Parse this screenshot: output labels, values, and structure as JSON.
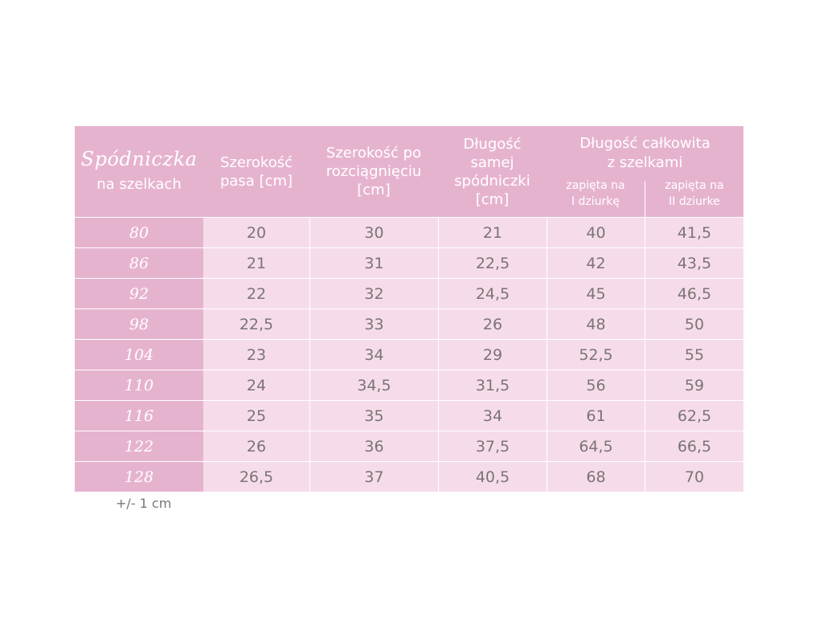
{
  "header": {
    "brand_title": "Spódniczka",
    "brand_sub": "na szelkach",
    "col_waist": [
      "Szerokość",
      "pasa [cm]"
    ],
    "col_stretched": [
      "Szerokość po",
      "rozciągnięciu",
      "[cm]"
    ],
    "col_length": [
      "Długość",
      "samej",
      "spódniczki",
      "[cm]"
    ],
    "col_total": [
      "Długość całkowita",
      "z szelkami"
    ],
    "col_total_sub1": [
      "zapięta na",
      "I dziurkę"
    ],
    "col_total_sub2": [
      "zapięta na",
      "II dziurke"
    ]
  },
  "rows": [
    {
      "size": "80",
      "waist": "20",
      "stretched": "30",
      "length": "21",
      "total1": "40",
      "total2": "41,5"
    },
    {
      "size": "86",
      "waist": "21",
      "stretched": "31",
      "length": "22,5",
      "total1": "42",
      "total2": "43,5"
    },
    {
      "size": "92",
      "waist": "22",
      "stretched": "32",
      "length": "24,5",
      "total1": "45",
      "total2": "46,5"
    },
    {
      "size": "98",
      "waist": "22,5",
      "stretched": "33",
      "length": "26",
      "total1": "48",
      "total2": "50"
    },
    {
      "size": "104",
      "waist": "23",
      "stretched": "34",
      "length": "29",
      "total1": "52,5",
      "total2": "55"
    },
    {
      "size": "110",
      "waist": "24",
      "stretched": "34,5",
      "length": "31,5",
      "total1": "56",
      "total2": "59"
    },
    {
      "size": "116",
      "waist": "25",
      "stretched": "35",
      "length": "34",
      "total1": "61",
      "total2": "62,5"
    },
    {
      "size": "122",
      "waist": "26",
      "stretched": "36",
      "length": "37,5",
      "total1": "64,5",
      "total2": "66,5"
    },
    {
      "size": "128",
      "waist": "26,5",
      "stretched": "37",
      "length": "40,5",
      "total1": "68",
      "total2": "70"
    }
  ],
  "note": "+/- 1 cm",
  "colors": {
    "header_bg": "#e6b3cf",
    "cell_bg": "#f6dcea",
    "text": "#7a7475"
  }
}
